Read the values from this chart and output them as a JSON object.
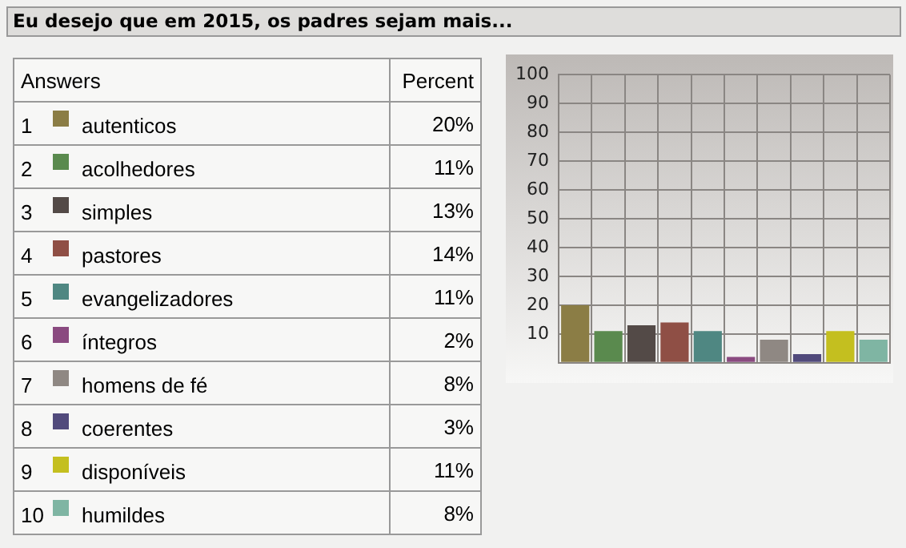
{
  "chart_data": {
    "type": "bar",
    "title": "Eu desejo que em 2015, os padres sejam mais...",
    "legend_title": "Answers",
    "annotations": [
      "Percent",
      "1",
      "2",
      "3",
      "4",
      "5",
      "6",
      "7",
      "8",
      "9",
      "10",
      "20%",
      "11%",
      "13%",
      "14%",
      "11%",
      "2%",
      "8%",
      "3%",
      "11%",
      "8%"
    ],
    "categories": [
      null,
      null,
      null,
      null,
      null,
      null,
      null,
      null,
      null,
      null
    ],
    "series": [
      {
        "name": "autenticos",
        "color": "#8b7d45",
        "values": [
          20,
          null,
          null,
          null,
          null,
          null,
          null,
          null,
          null,
          null
        ]
      },
      {
        "name": "acolhedores",
        "color": "#5a8a4e",
        "values": [
          null,
          11,
          null,
          null,
          null,
          null,
          null,
          null,
          null,
          null
        ]
      },
      {
        "name": "simples",
        "color": "#534a47",
        "values": [
          null,
          null,
          13,
          null,
          null,
          null,
          null,
          null,
          null,
          null
        ]
      },
      {
        "name": "pastores",
        "color": "#8f4f45",
        "values": [
          null,
          null,
          null,
          14,
          null,
          null,
          null,
          null,
          null,
          null
        ]
      },
      {
        "name": "evangelizadores",
        "color": "#4f8782",
        "values": [
          null,
          null,
          null,
          null,
          11,
          null,
          null,
          null,
          null,
          null
        ]
      },
      {
        "name": "íntegros",
        "color": "#8a4a80",
        "values": [
          null,
          null,
          null,
          null,
          null,
          2,
          null,
          null,
          null,
          null
        ]
      },
      {
        "name": "homens de fé",
        "color": "#8f8883",
        "values": [
          null,
          null,
          null,
          null,
          null,
          null,
          8,
          null,
          null,
          null
        ]
      },
      {
        "name": "coerentes",
        "color": "#514a7c",
        "values": [
          null,
          null,
          null,
          null,
          null,
          null,
          null,
          3,
          null,
          null
        ]
      },
      {
        "name": "disponíveis",
        "color": "#c4bf1f",
        "values": [
          null,
          null,
          null,
          null,
          null,
          null,
          null,
          null,
          11,
          null
        ]
      },
      {
        "name": "humildes",
        "color": "#7fb5a3",
        "values": [
          null,
          null,
          null,
          null,
          null,
          null,
          null,
          null,
          null,
          8
        ]
      }
    ],
    "ylim": [
      0,
      100
    ],
    "yticks": [
      {
        "value": 0,
        "label": null
      },
      10,
      20,
      30,
      40,
      50,
      60,
      70,
      80,
      90,
      100
    ],
    "grid": true,
    "legend": "left",
    "tick_labels": "y"
  }
}
